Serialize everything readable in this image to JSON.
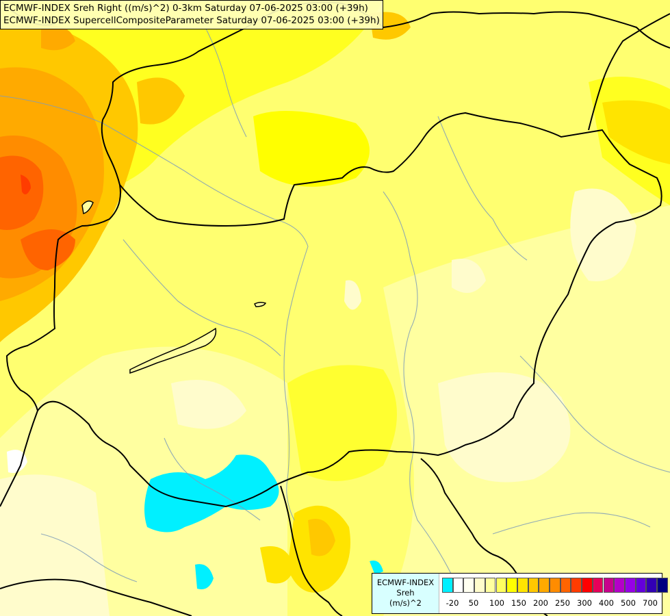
{
  "header": {
    "line1": "ECMWF-INDEX Sreh Right ((m/s)^2) 0-3km Saturday 07-06-2025 03:00 (+39h)",
    "line2": "ECMWF-INDEX SupercellCompositeParameter Saturday 07-06-2025 03:00 (+39h)"
  },
  "legend": {
    "title_line1": "ECMWF-INDEX",
    "title_line2": "Sreh",
    "title_line3": "(m/s)^2",
    "colors": [
      "#00f0ff",
      "#ffffff",
      "#fffff0",
      "#fffccc",
      "#ffffa0",
      "#ffff60",
      "#ffff00",
      "#ffe400",
      "#ffc800",
      "#ffaa00",
      "#ff8c00",
      "#ff6400",
      "#ff3c00",
      "#ff0000",
      "#e6005a",
      "#c8008c",
      "#b400c8",
      "#9600e6",
      "#6400dc",
      "#3200b4",
      "#000080"
    ],
    "ticks": [
      "-20",
      "50",
      "100",
      "150",
      "200",
      "250",
      "300",
      "400",
      "500",
      "700"
    ]
  }
}
